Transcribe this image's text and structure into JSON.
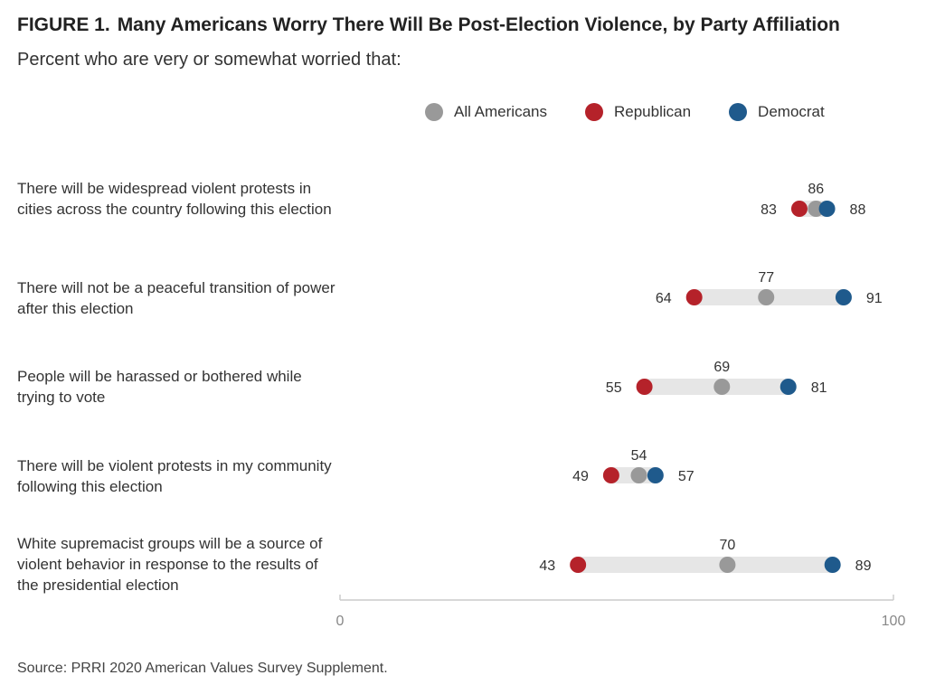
{
  "figure": {
    "label": "FIGURE 1.",
    "title": "Many Americans Worry There Will Be Post-Election Violence, by Party Affiliation",
    "subtitle": "Percent who are very or somewhat worried that:",
    "source": "Source: PRRI 2020 American Values Survey Supplement."
  },
  "legend": [
    {
      "name": "All Americans",
      "color": "#999999"
    },
    {
      "name": "Republican",
      "color": "#b5222a"
    },
    {
      "name": "Democrat",
      "color": "#1f5a8c"
    }
  ],
  "chart_data": {
    "type": "dot-range",
    "title": "Many Americans Worry There Will Be Post-Election Violence, by Party Affiliation",
    "subtitle": "Percent who are very or somewhat worried that:",
    "xlim": [
      0,
      100
    ],
    "xticks": [
      "0",
      "100"
    ],
    "legend_position": "top-right",
    "colors": {
      "All Americans": "#999999",
      "Republican": "#b5222a",
      "Democrat": "#1f5a8c",
      "range": "#e6e6e6",
      "axis": "#cccccc"
    },
    "categories": [
      "There will be widespread violent protests in cities across the country following this election",
      "There will not be a peaceful transition of power after this election",
      "People will be harassed or bothered while trying to vote",
      "There will be violent protests in my community following this election",
      "White supremacist groups will be a source of violent behavior in response to the results of the presidential election"
    ],
    "series": [
      {
        "name": "All Americans",
        "values": [
          86,
          77,
          69,
          54,
          70
        ]
      },
      {
        "name": "Republican",
        "values": [
          83,
          64,
          55,
          49,
          43
        ]
      },
      {
        "name": "Democrat",
        "values": [
          88,
          91,
          81,
          57,
          89
        ]
      }
    ]
  }
}
